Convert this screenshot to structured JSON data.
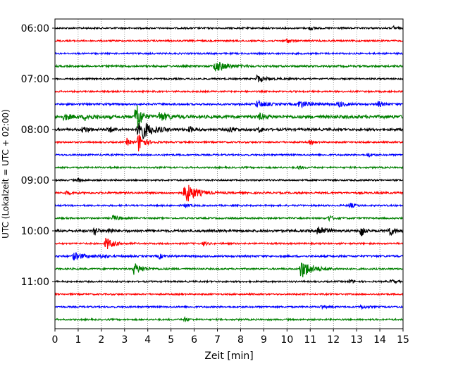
{
  "chart_data": {
    "type": "line",
    "xlabel": "Zeit  [min]",
    "ylabel": "UTC (Lokalzeit = UTC + 02:00)",
    "xlim": [
      0,
      15
    ],
    "x_ticks": [
      0,
      1,
      2,
      3,
      4,
      5,
      6,
      7,
      8,
      9,
      10,
      11,
      12,
      13,
      14,
      15
    ],
    "y_tick_labels": [
      "06:00",
      "07:00",
      "08:00",
      "09:00",
      "10:00",
      "11:00"
    ],
    "grid": "vertical dotted",
    "trace_interval_min": 15,
    "trace_colors": [
      "#000000",
      "#ff0000",
      "#0000ff",
      "#008000"
    ],
    "traces": [
      {
        "start": "06:00",
        "noise": 1.0,
        "bursts": [
          {
            "t": 11.0,
            "amp": 3.0,
            "dur": 0.3
          },
          {
            "t": 14.6,
            "amp": 3.0,
            "dur": 0.25
          }
        ]
      },
      {
        "start": "06:15",
        "noise": 1.0,
        "bursts": [
          {
            "t": 10.0,
            "amp": 3.5,
            "dur": 0.3
          }
        ]
      },
      {
        "start": "06:30",
        "noise": 1.0,
        "bursts": []
      },
      {
        "start": "06:45",
        "noise": 1.2,
        "bursts": [
          {
            "t": 6.9,
            "amp": 8.0,
            "dur": 1.0
          }
        ]
      },
      {
        "start": "07:00",
        "noise": 1.0,
        "bursts": [
          {
            "t": 8.7,
            "amp": 5.0,
            "dur": 0.8
          }
        ]
      },
      {
        "start": "07:15",
        "noise": 1.0,
        "bursts": []
      },
      {
        "start": "07:30",
        "noise": 1.2,
        "bursts": [
          {
            "t": 8.7,
            "amp": 5.0,
            "dur": 0.8
          },
          {
            "t": 10.5,
            "amp": 5.0,
            "dur": 1.0
          },
          {
            "t": 12.2,
            "amp": 4.0,
            "dur": 0.6
          },
          {
            "t": 13.9,
            "amp": 4.0,
            "dur": 0.5
          }
        ]
      },
      {
        "start": "07:45",
        "noise": 2.0,
        "bursts": [
          {
            "t": 0.4,
            "amp": 4.0,
            "dur": 0.6
          },
          {
            "t": 1.3,
            "amp": 4.0,
            "dur": 0.6
          },
          {
            "t": 3.5,
            "amp": 32.0,
            "dur": 0.35
          },
          {
            "t": 4.5,
            "amp": 6.0,
            "dur": 0.8
          },
          {
            "t": 8.8,
            "amp": 4.0,
            "dur": 0.5
          }
        ]
      },
      {
        "start": "08:00",
        "noise": 1.5,
        "bursts": [
          {
            "t": 1.2,
            "amp": 5.0,
            "dur": 0.5
          },
          {
            "t": 2.3,
            "amp": 5.0,
            "dur": 0.4
          },
          {
            "t": 3.6,
            "amp": 18.0,
            "dur": 1.0
          },
          {
            "t": 5.8,
            "amp": 4.0,
            "dur": 0.4
          },
          {
            "t": 7.5,
            "amp": 4.0,
            "dur": 0.5
          },
          {
            "t": 8.8,
            "amp": 4.0,
            "dur": 0.3
          }
        ]
      },
      {
        "start": "08:15",
        "noise": 1.0,
        "bursts": [
          {
            "t": 3.1,
            "amp": 5.0,
            "dur": 0.4
          },
          {
            "t": 3.6,
            "amp": 14.0,
            "dur": 0.5
          },
          {
            "t": 11.0,
            "amp": 3.0,
            "dur": 0.3
          }
        ]
      },
      {
        "start": "08:30",
        "noise": 1.0,
        "bursts": [
          {
            "t": 13.5,
            "amp": 3.0,
            "dur": 0.3
          }
        ]
      },
      {
        "start": "08:45",
        "noise": 1.0,
        "bursts": [
          {
            "t": 10.5,
            "amp": 3.0,
            "dur": 0.3
          }
        ]
      },
      {
        "start": "09:00",
        "noise": 1.0,
        "bursts": [
          {
            "t": 1.0,
            "amp": 3.0,
            "dur": 0.3
          }
        ]
      },
      {
        "start": "09:15",
        "noise": 1.2,
        "bursts": [
          {
            "t": 0.5,
            "amp": 3.0,
            "dur": 0.3
          },
          {
            "t": 5.6,
            "amp": 16.0,
            "dur": 0.9
          }
        ]
      },
      {
        "start": "09:30",
        "noise": 1.0,
        "bursts": [
          {
            "t": 5.6,
            "amp": 3.0,
            "dur": 0.3
          },
          {
            "t": 12.7,
            "amp": 4.0,
            "dur": 0.4
          }
        ]
      },
      {
        "start": "09:45",
        "noise": 1.0,
        "bursts": [
          {
            "t": 2.5,
            "amp": 4.0,
            "dur": 0.6
          },
          {
            "t": 11.8,
            "amp": 4.0,
            "dur": 0.4
          }
        ]
      },
      {
        "start": "10:00",
        "noise": 1.5,
        "bursts": [
          {
            "t": 1.7,
            "amp": 8.0,
            "dur": 0.25
          },
          {
            "t": 2.3,
            "amp": 4.0,
            "dur": 0.4
          },
          {
            "t": 11.3,
            "amp": 9.0,
            "dur": 0.6
          },
          {
            "t": 13.2,
            "amp": 12.0,
            "dur": 0.2
          },
          {
            "t": 14.4,
            "amp": 7.0,
            "dur": 0.5
          }
        ]
      },
      {
        "start": "10:15",
        "noise": 1.0,
        "bursts": [
          {
            "t": 2.2,
            "amp": 10.0,
            "dur": 0.6
          },
          {
            "t": 6.4,
            "amp": 3.0,
            "dur": 0.3
          }
        ]
      },
      {
        "start": "10:30",
        "noise": 1.2,
        "bursts": [
          {
            "t": 0.8,
            "amp": 5.0,
            "dur": 1.0
          },
          {
            "t": 2.0,
            "amp": 3.0,
            "dur": 0.4
          },
          {
            "t": 4.5,
            "amp": 3.0,
            "dur": 0.4
          }
        ]
      },
      {
        "start": "10:45",
        "noise": 1.0,
        "bursts": [
          {
            "t": 3.4,
            "amp": 8.0,
            "dur": 0.8
          },
          {
            "t": 10.6,
            "amp": 14.0,
            "dur": 1.0
          }
        ]
      },
      {
        "start": "11:00",
        "noise": 1.0,
        "bursts": [
          {
            "t": 12.7,
            "amp": 3.0,
            "dur": 0.3
          },
          {
            "t": 14.5,
            "amp": 3.0,
            "dur": 0.3
          }
        ]
      },
      {
        "start": "11:15",
        "noise": 1.0,
        "bursts": []
      },
      {
        "start": "11:30",
        "noise": 1.0,
        "bursts": [
          {
            "t": 11.5,
            "amp": 3.0,
            "dur": 0.3
          },
          {
            "t": 13.2,
            "amp": 3.0,
            "dur": 0.4
          }
        ]
      },
      {
        "start": "11:45",
        "noise": 1.0,
        "bursts": [
          {
            "t": 5.6,
            "amp": 3.0,
            "dur": 0.3
          }
        ]
      }
    ]
  }
}
